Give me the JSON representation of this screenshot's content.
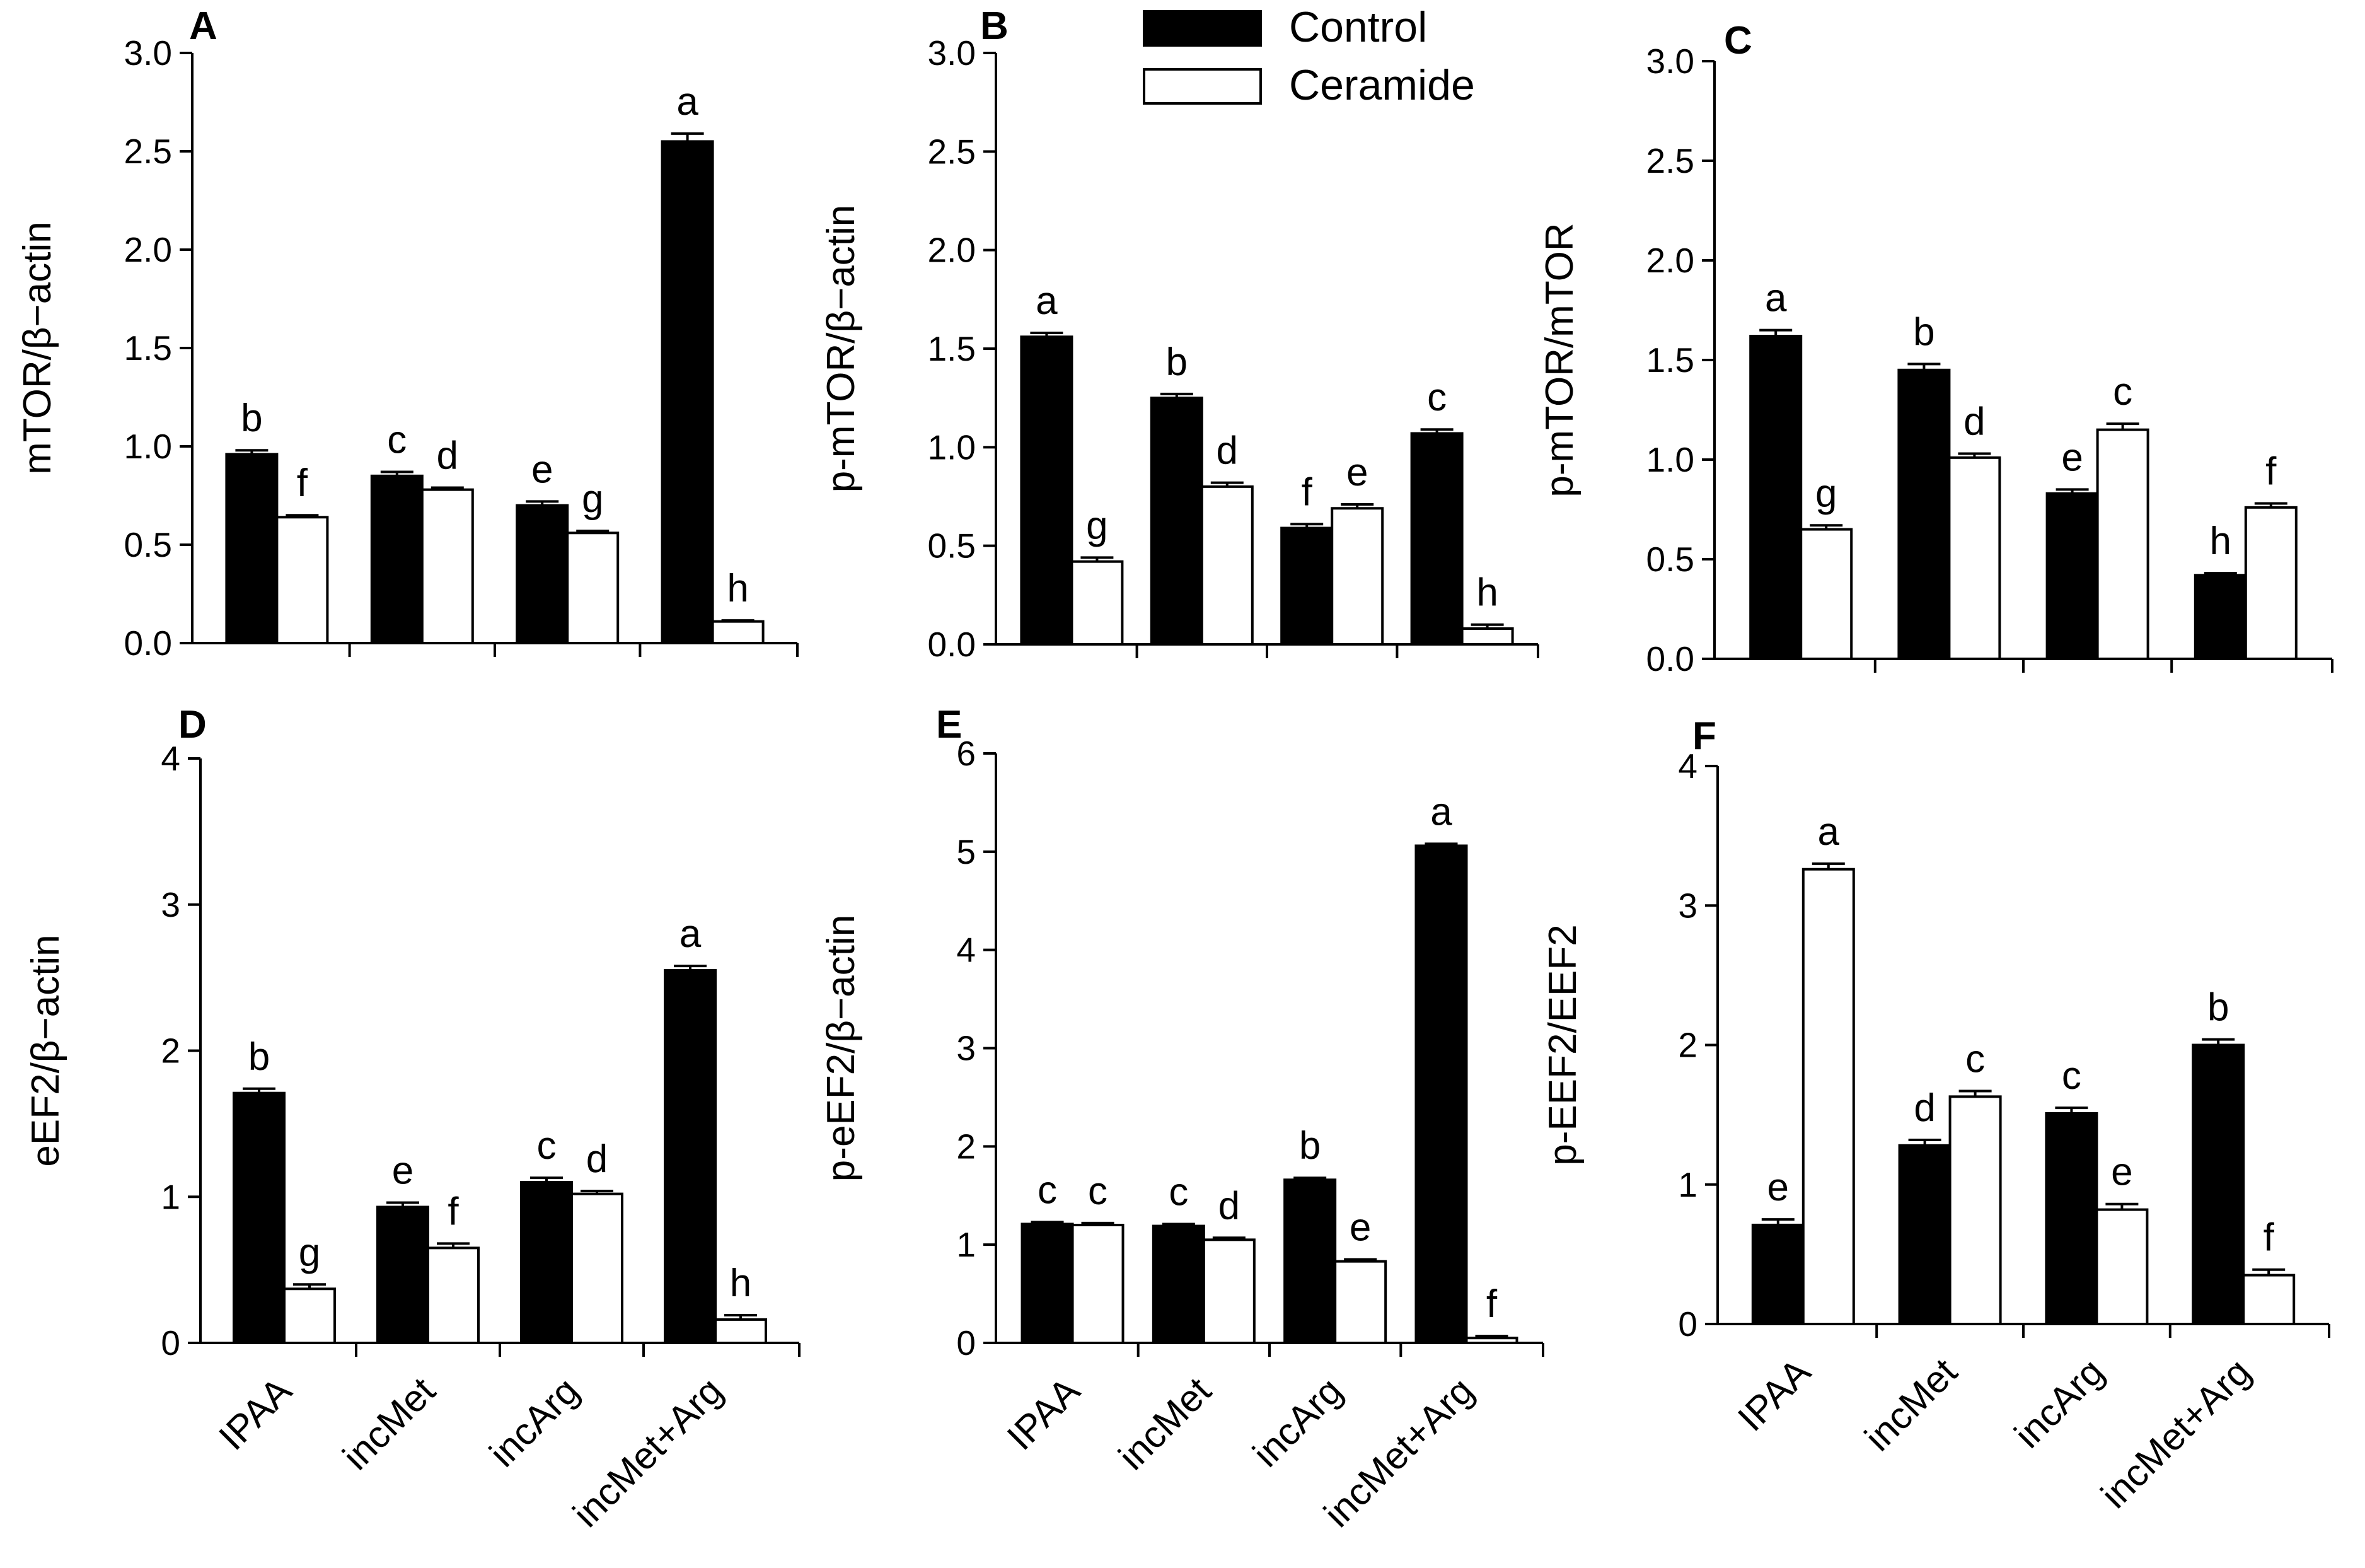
{
  "legend": {
    "items": [
      {
        "label": "Control",
        "color": "#000000"
      },
      {
        "label": "Ceramide",
        "color": "#ffffff"
      }
    ],
    "position": "top-center"
  },
  "chart_data": [
    {
      "panel": "A",
      "type": "bar",
      "categories": [
        "",
        "",
        "",
        ""
      ],
      "ylabel": "mTOR/β−actin",
      "ylim": [
        0,
        3.0
      ],
      "yticks": [
        "0.0",
        "0.5",
        "1.0",
        "1.5",
        "2.0",
        "2.5",
        "3.0"
      ],
      "series": [
        {
          "name": "Control",
          "values": [
            0.96,
            0.85,
            0.7,
            2.55
          ],
          "errors": [
            0.02,
            0.02,
            0.02,
            0.04
          ],
          "labels": [
            "b",
            "c",
            "e",
            "a"
          ]
        },
        {
          "name": "Ceramide",
          "values": [
            0.64,
            0.78,
            0.56,
            0.11
          ],
          "errors": [
            0.01,
            0.01,
            0.01,
            0.005
          ],
          "labels": [
            "f",
            "d",
            "g",
            "h"
          ]
        }
      ]
    },
    {
      "panel": "B",
      "type": "bar",
      "categories": [
        "",
        "",
        "",
        ""
      ],
      "ylabel": "p-mTOR/β−actin",
      "ylim": [
        0,
        3.0
      ],
      "yticks": [
        "0.0",
        "0.5",
        "1.0",
        "1.5",
        "2.0",
        "2.5",
        "3.0"
      ],
      "series": [
        {
          "name": "Control",
          "values": [
            1.56,
            1.25,
            0.59,
            1.07
          ],
          "errors": [
            0.02,
            0.02,
            0.02,
            0.02
          ],
          "labels": [
            "a",
            "b",
            "f",
            "c"
          ]
        },
        {
          "name": "Ceramide",
          "values": [
            0.42,
            0.8,
            0.69,
            0.08
          ],
          "errors": [
            0.02,
            0.02,
            0.02,
            0.02
          ],
          "labels": [
            "g",
            "d",
            "e",
            "h"
          ]
        }
      ]
    },
    {
      "panel": "C",
      "type": "bar",
      "categories": [
        "",
        "",
        "",
        ""
      ],
      "ylabel": "p-mTOR/mTOR",
      "ylim": [
        0,
        3.0
      ],
      "yticks": [
        "0.0",
        "0.5",
        "1.0",
        "1.5",
        "2.0",
        "2.5",
        "3.0"
      ],
      "series": [
        {
          "name": "Control",
          "values": [
            1.62,
            1.45,
            0.83,
            0.42
          ],
          "errors": [
            0.03,
            0.03,
            0.02,
            0.01
          ],
          "labels": [
            "a",
            "b",
            "e",
            "h"
          ]
        },
        {
          "name": "Ceramide",
          "values": [
            0.65,
            1.01,
            1.15,
            0.76
          ],
          "errors": [
            0.02,
            0.02,
            0.03,
            0.02
          ],
          "labels": [
            "g",
            "d",
            "c",
            "f"
          ]
        }
      ]
    },
    {
      "panel": "D",
      "type": "bar",
      "categories": [
        "IPAA",
        "incMet",
        "incArg",
        "incMet+Arg"
      ],
      "ylabel": "eEF2/β−actin",
      "ylim": [
        0,
        4
      ],
      "yticks": [
        "0",
        "1",
        "2",
        "3",
        "4"
      ],
      "series": [
        {
          "name": "Control",
          "values": [
            1.71,
            0.93,
            1.1,
            2.55
          ],
          "errors": [
            0.03,
            0.03,
            0.03,
            0.03
          ],
          "labels": [
            "b",
            "e",
            "c",
            "a"
          ]
        },
        {
          "name": "Ceramide",
          "values": [
            0.37,
            0.65,
            1.02,
            0.16
          ],
          "errors": [
            0.03,
            0.03,
            0.02,
            0.03
          ],
          "labels": [
            "g",
            "f",
            "d",
            "h"
          ]
        }
      ]
    },
    {
      "panel": "E",
      "type": "bar",
      "categories": [
        "IPAA",
        "incMet",
        "incArg",
        "incMet+Arg"
      ],
      "ylabel": "p-eEF2/β−actin",
      "ylim": [
        0,
        6
      ],
      "yticks": [
        "0",
        "1",
        "2",
        "3",
        "4",
        "5",
        "6"
      ],
      "series": [
        {
          "name": "Control",
          "values": [
            1.21,
            1.19,
            1.66,
            5.06
          ],
          "errors": [
            0.02,
            0.02,
            0.02,
            0.02
          ],
          "labels": [
            "c",
            "c",
            "b",
            "a"
          ]
        },
        {
          "name": "Ceramide",
          "values": [
            1.2,
            1.05,
            0.83,
            0.05
          ],
          "errors": [
            0.02,
            0.02,
            0.02,
            0.02
          ],
          "labels": [
            "c",
            "d",
            "e",
            "f"
          ]
        }
      ]
    },
    {
      "panel": "F",
      "type": "bar",
      "categories": [
        "IPAA",
        "incMet",
        "incArg",
        "incMet+Arg"
      ],
      "ylabel": "p-EEF2/EEF2",
      "ylim": [
        0,
        4
      ],
      "yticks": [
        "0",
        "1",
        "2",
        "3",
        "4"
      ],
      "series": [
        {
          "name": "Control",
          "values": [
            0.71,
            1.28,
            1.51,
            2.0
          ],
          "errors": [
            0.04,
            0.04,
            0.04,
            0.04
          ],
          "labels": [
            "e",
            "d",
            "c",
            "b"
          ]
        },
        {
          "name": "Ceramide",
          "values": [
            3.26,
            1.63,
            0.82,
            0.35
          ],
          "errors": [
            0.04,
            0.04,
            0.04,
            0.04
          ],
          "labels": [
            "a",
            "c",
            "e",
            "f"
          ]
        }
      ]
    }
  ]
}
